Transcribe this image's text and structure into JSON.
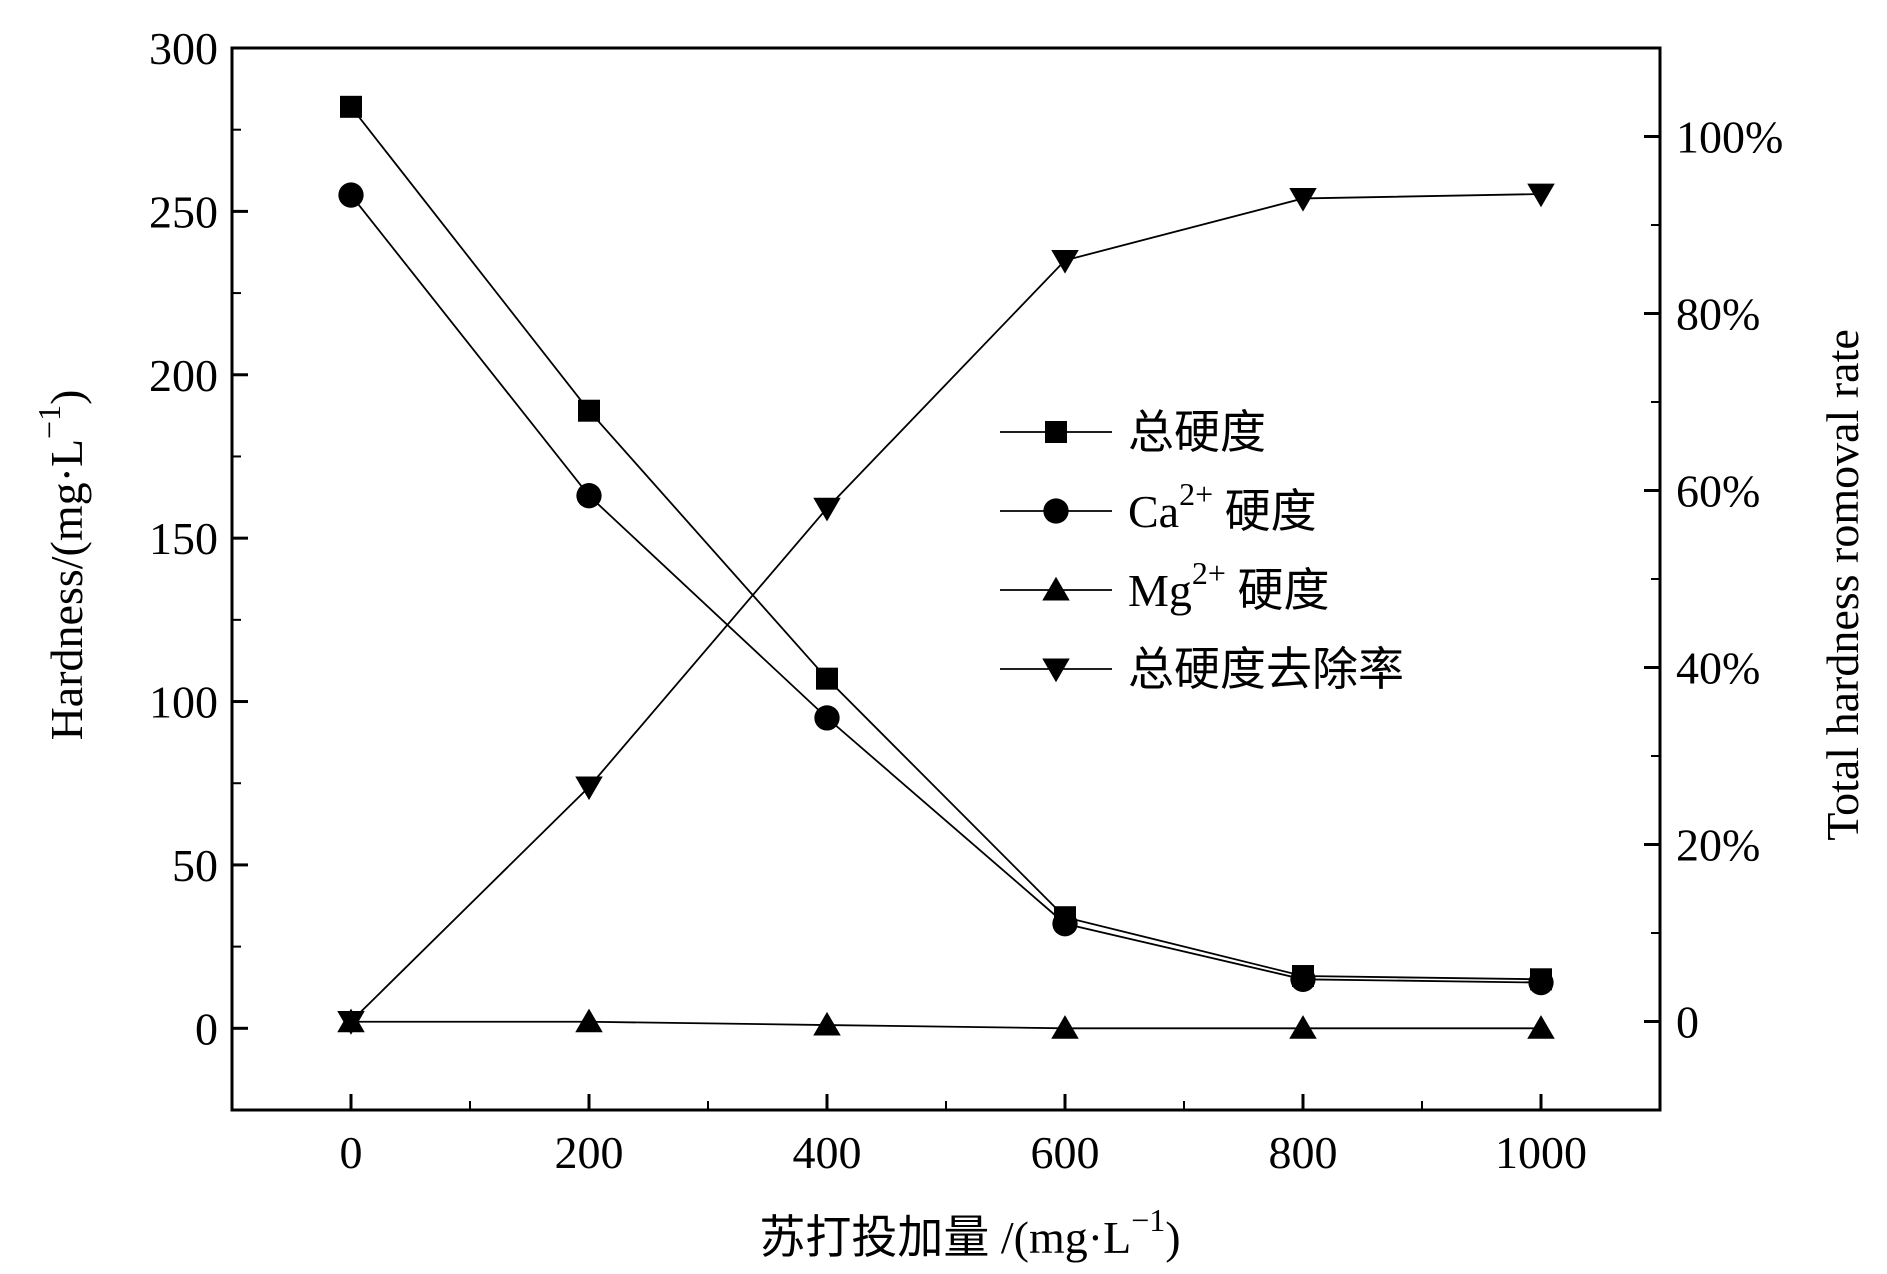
{
  "chart_data": {
    "type": "line",
    "x": [
      0,
      200,
      400,
      600,
      800,
      1000
    ],
    "xlabel_main": "苏打投加量 /(mg·L",
    "xlabel_sup": "−1",
    "xlabel_end": ")",
    "ylabel_main": "Hardness/(mg·L",
    "ylabel_sup": "−1",
    "ylabel_end": ")",
    "y2label": "Total hardness romoval rate",
    "xlim": [
      -100,
      1100
    ],
    "ylim": [
      -25,
      300
    ],
    "y2lim": [
      -10,
      110
    ],
    "xticks": [
      "0",
      "200",
      "400",
      "600",
      "800",
      "1000"
    ],
    "yticks": [
      "0",
      "50",
      "100",
      "150",
      "200",
      "250",
      "300"
    ],
    "y2ticks": [
      "0",
      "20%",
      "40%",
      "60%",
      "80%",
      "100%"
    ],
    "legend_position": "center-right",
    "series": [
      {
        "name": "总硬度",
        "name_sup": "",
        "marker": "square",
        "axis": "left",
        "values": [
          282,
          189,
          107,
          34,
          16,
          15
        ]
      },
      {
        "name": "Ca",
        "name_sup": "2+",
        "name_suffix": " 硬度",
        "marker": "circle",
        "axis": "left",
        "values": [
          255,
          163,
          95,
          32,
          15,
          14
        ]
      },
      {
        "name": "Mg",
        "name_sup": "2+",
        "name_suffix": " 硬度",
        "marker": "triangle-up",
        "axis": "left",
        "values": [
          2,
          2,
          1,
          0,
          0,
          0
        ]
      },
      {
        "name": "总硬度去除率",
        "name_sup": "",
        "marker": "triangle-down",
        "axis": "right",
        "values": [
          0,
          26.5,
          58,
          86,
          93,
          93.5
        ]
      }
    ]
  }
}
